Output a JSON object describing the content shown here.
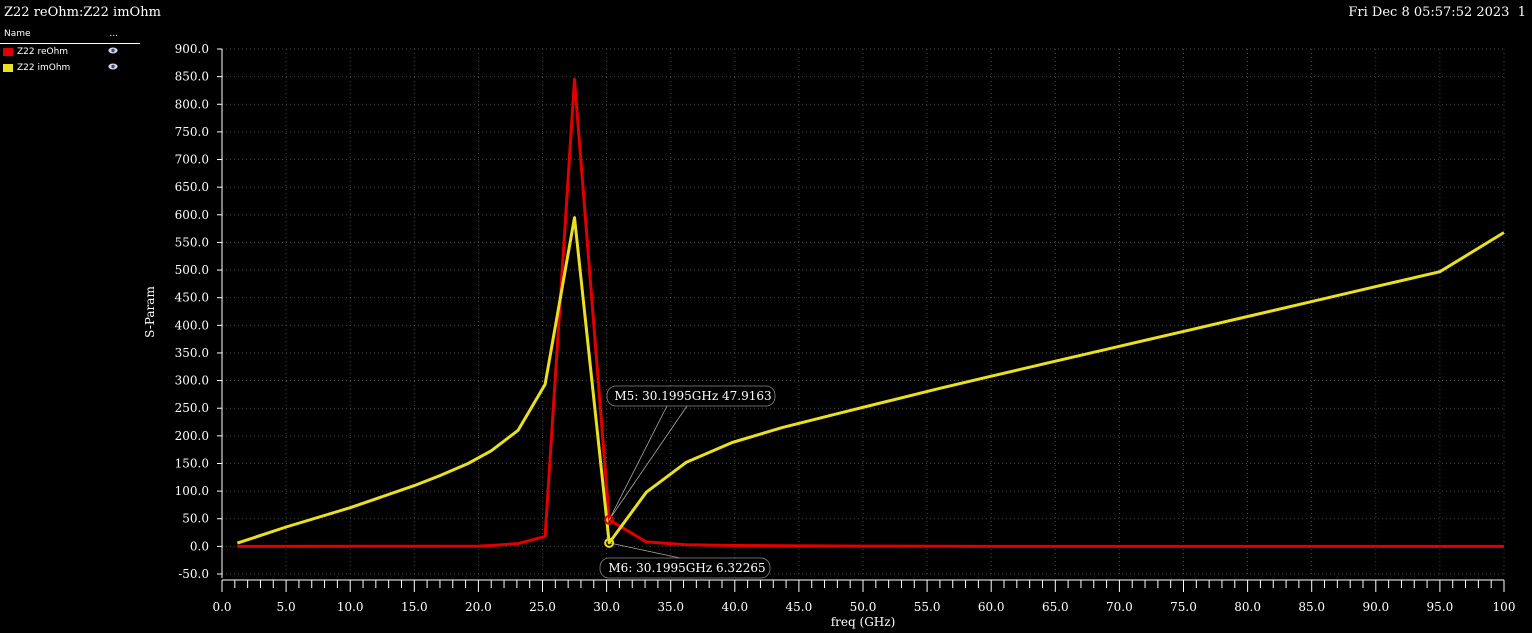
{
  "header": {
    "title": "Z22 reOhm:Z22 imOhm",
    "datetime": "Fri Dec 8 05:57:52 2023",
    "page_number": "1"
  },
  "legend": {
    "col_name": "Name",
    "col_more": "...",
    "items": [
      {
        "label": "Z22 reOhm",
        "color": "#e00000"
      },
      {
        "label": "Z22 imOhm",
        "color": "#e8e020"
      }
    ]
  },
  "chart_data": {
    "type": "line",
    "xlabel": "freq (GHz)",
    "ylabel": "S-Param",
    "xlim": [
      0,
      100
    ],
    "ylim": [
      -50,
      900
    ],
    "x_ticks": [
      "0.0",
      "5.0",
      "10.0",
      "15.0",
      "20.0",
      "25.0",
      "30.0",
      "35.0",
      "40.0",
      "45.0",
      "50.0",
      "55.0",
      "60.0",
      "65.0",
      "70.0",
      "75.0",
      "80.0",
      "85.0",
      "90.0",
      "95.0",
      "100"
    ],
    "y_ticks": [
      "-50.0",
      "0.0",
      "50.0",
      "100.0",
      "150.0",
      "200.0",
      "250.0",
      "300.0",
      "350.0",
      "400.0",
      "450.0",
      "500.0",
      "550.0",
      "600.0",
      "650.0",
      "700.0",
      "750.0",
      "800.0",
      "850.0",
      "900.0"
    ],
    "grid": true,
    "series": [
      {
        "name": "Z22 reOhm",
        "color": "#e00000",
        "x": [
          1.2,
          20,
          21,
          23.1,
          25.2,
          27.5,
          30.2,
          33.1,
          36.2,
          40,
          50,
          60,
          70,
          80,
          90,
          100
        ],
        "y": [
          0,
          0.5,
          1.5,
          5,
          18,
          845,
          47.9,
          8,
          3,
          1.5,
          0.5,
          0,
          0,
          0,
          0,
          0
        ]
      },
      {
        "name": "Z22 imOhm",
        "color": "#e8e020",
        "x": [
          1.2,
          5,
          10,
          15,
          17,
          19.2,
          21,
          23.1,
          25.2,
          27.5,
          30.2,
          33.1,
          36.2,
          39.8,
          43.7,
          48,
          52,
          56,
          60,
          65,
          70,
          75,
          80,
          85,
          90,
          95,
          100
        ],
        "y": [
          6,
          35,
          70,
          110,
          128,
          150,
          173,
          210,
          293,
          595,
          6.3,
          98,
          152,
          188,
          215,
          240,
          263,
          286,
          308,
          335,
          362,
          389,
          416,
          443,
          470,
          497,
          568
        ]
      }
    ],
    "markers": [
      {
        "label": "M5: 30.1995GHz 47.9163",
        "x": 30.1995,
        "y": 47.9163,
        "series": "Z22 reOhm"
      },
      {
        "label": "M6: 30.1995GHz 6.32265",
        "x": 30.1995,
        "y": 6.32265,
        "series": "Z22 imOhm"
      }
    ]
  }
}
